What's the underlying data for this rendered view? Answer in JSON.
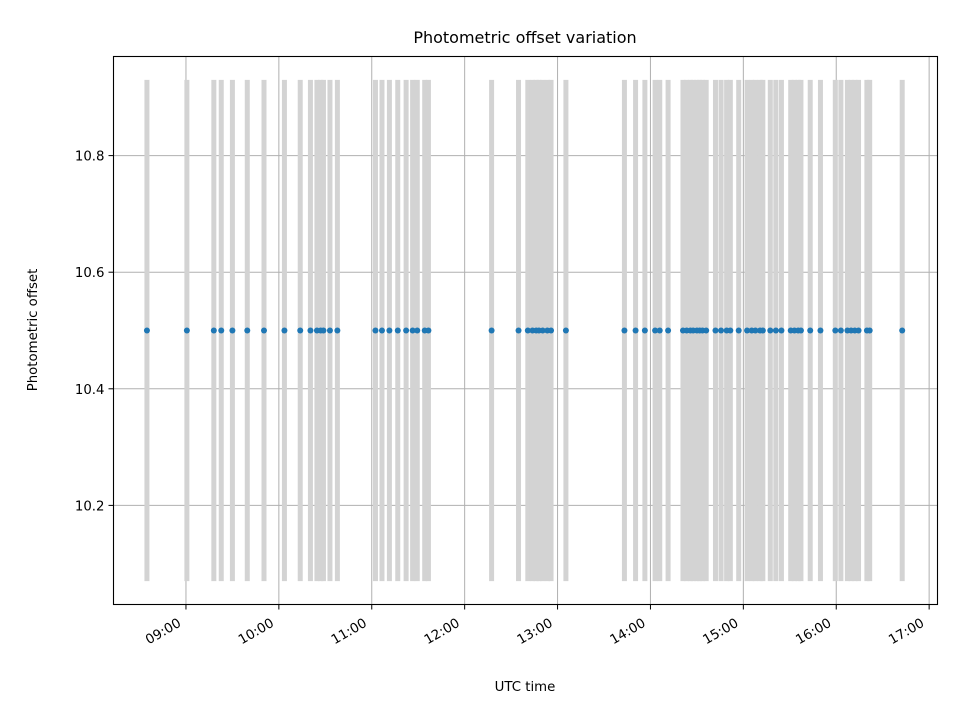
{
  "chart_data": {
    "type": "scatter",
    "title": "Photometric offset variation",
    "xlabel": "UTC time",
    "ylabel": "Photometric offset",
    "x_unit": "hours UTC",
    "xlim": [
      8.22,
      17.09
    ],
    "ylim": [
      10.03,
      10.97
    ],
    "grid": true,
    "errorbar_range": [
      10.07,
      10.93
    ],
    "x_ticks": [
      {
        "value": 9,
        "label": "09:00"
      },
      {
        "value": 10,
        "label": "10:00"
      },
      {
        "value": 11,
        "label": "11:00"
      },
      {
        "value": 12,
        "label": "12:00"
      },
      {
        "value": 13,
        "label": "13:00"
      },
      {
        "value": 14,
        "label": "14:00"
      },
      {
        "value": 15,
        "label": "15:00"
      },
      {
        "value": 16,
        "label": "16:00"
      },
      {
        "value": 17,
        "label": "17:00"
      }
    ],
    "y_ticks": [
      {
        "value": 10.2,
        "label": "10.2"
      },
      {
        "value": 10.4,
        "label": "10.4"
      },
      {
        "value": 10.6,
        "label": "10.6"
      },
      {
        "value": 10.8,
        "label": "10.8"
      }
    ],
    "series": [
      {
        "y_value": 10.5,
        "x": [
          8.58,
          9.01,
          9.3,
          9.38,
          9.5,
          9.66,
          9.84,
          10.06,
          10.23,
          10.34,
          10.41,
          10.45,
          10.48,
          10.55,
          10.63,
          11.04,
          11.11,
          11.19,
          11.28,
          11.37,
          11.44,
          11.49,
          11.57,
          11.61,
          12.29,
          12.58,
          12.68,
          12.73,
          12.77,
          12.8,
          12.84,
          12.89,
          12.93,
          13.09,
          13.72,
          13.84,
          13.94,
          14.05,
          14.1,
          14.19,
          14.35,
          14.39,
          14.43,
          14.46,
          14.5,
          14.53,
          14.56,
          14.6,
          14.7,
          14.76,
          14.82,
          14.86,
          14.95,
          15.04,
          15.09,
          15.13,
          15.18,
          15.21,
          15.29,
          15.35,
          15.41,
          15.51,
          15.55,
          15.59,
          15.62,
          15.72,
          15.83,
          15.99,
          16.05,
          16.12,
          16.16,
          16.2,
          16.24,
          16.33,
          16.36,
          16.71
        ]
      }
    ],
    "colors": {
      "marker": "#1f77b4",
      "errorbar": "#d3d3d3",
      "grid": "#b0b0b0",
      "axes": "#000000"
    }
  }
}
